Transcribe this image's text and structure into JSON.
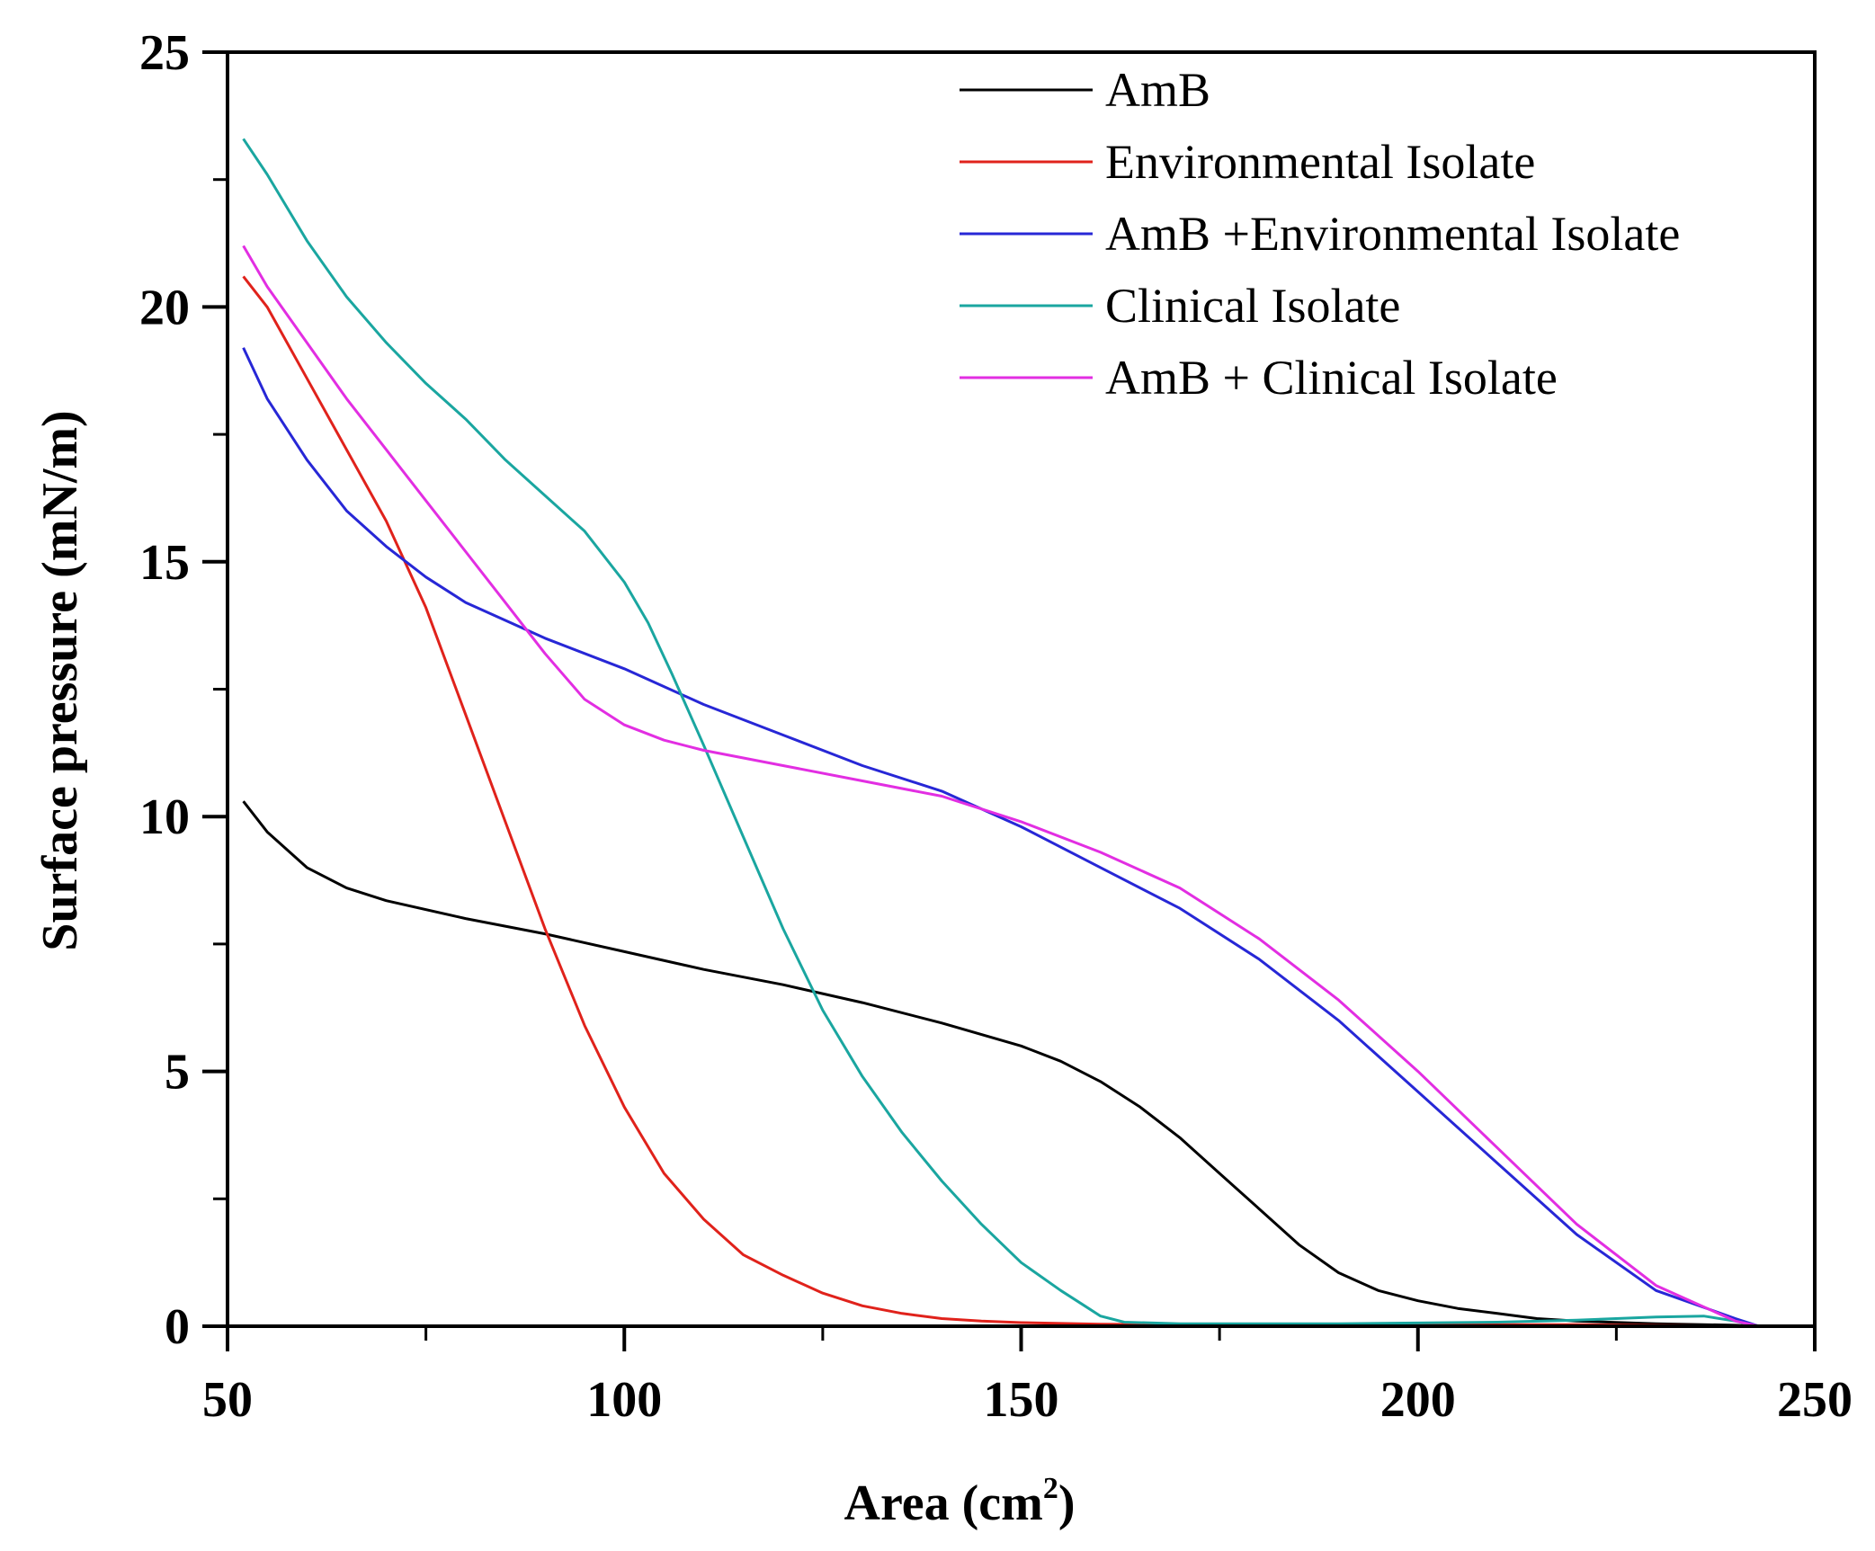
{
  "chart_data": {
    "type": "line",
    "title": "",
    "xlabel_prefix": "Area (cm",
    "xlabel_sup": "2",
    "xlabel_suffix": ")",
    "ylabel": "Surface pressure (mN/m)",
    "xlim": [
      50,
      250
    ],
    "ylim": [
      0,
      25
    ],
    "x_major_ticks": [
      50,
      100,
      150,
      200,
      250
    ],
    "x_minor_ticks": [
      75,
      125,
      175,
      225
    ],
    "y_major_ticks": [
      0,
      5,
      10,
      15,
      20,
      25
    ],
    "y_minor_ticks": [
      2.5,
      7.5,
      12.5,
      17.5,
      22.5
    ],
    "x_tick_labels": [
      "50",
      "100",
      "150",
      "200",
      "250"
    ],
    "y_tick_labels": [
      "0",
      "5",
      "10",
      "15",
      "20",
      "25"
    ],
    "grid": false,
    "legend_position": "top-right",
    "series": [
      {
        "name": "AmB",
        "color": "#000000",
        "points": [
          [
            52,
            10.3
          ],
          [
            55,
            9.7
          ],
          [
            60,
            9.0
          ],
          [
            65,
            8.6
          ],
          [
            70,
            8.35
          ],
          [
            80,
            8.0
          ],
          [
            90,
            7.7
          ],
          [
            100,
            7.35
          ],
          [
            110,
            7.0
          ],
          [
            120,
            6.7
          ],
          [
            130,
            6.35
          ],
          [
            140,
            5.95
          ],
          [
            150,
            5.5
          ],
          [
            155,
            5.2
          ],
          [
            160,
            4.8
          ],
          [
            165,
            4.3
          ],
          [
            170,
            3.7
          ],
          [
            175,
            3.0
          ],
          [
            180,
            2.3
          ],
          [
            185,
            1.6
          ],
          [
            190,
            1.05
          ],
          [
            195,
            0.7
          ],
          [
            200,
            0.5
          ],
          [
            205,
            0.35
          ],
          [
            210,
            0.25
          ],
          [
            215,
            0.15
          ],
          [
            220,
            0.1
          ],
          [
            230,
            0.05
          ],
          [
            240,
            0.02
          ],
          [
            243,
            0.0
          ]
        ]
      },
      {
        "name": "Environmental Isolate",
        "color": "#e0221b",
        "points": [
          [
            52,
            20.6
          ],
          [
            55,
            20.0
          ],
          [
            60,
            18.6
          ],
          [
            65,
            17.2
          ],
          [
            70,
            15.8
          ],
          [
            75,
            14.1
          ],
          [
            80,
            12.0
          ],
          [
            85,
            9.9
          ],
          [
            90,
            7.8
          ],
          [
            95,
            5.9
          ],
          [
            100,
            4.3
          ],
          [
            105,
            3.0
          ],
          [
            110,
            2.1
          ],
          [
            115,
            1.4
          ],
          [
            120,
            1.0
          ],
          [
            125,
            0.65
          ],
          [
            130,
            0.4
          ],
          [
            135,
            0.25
          ],
          [
            140,
            0.15
          ],
          [
            145,
            0.1
          ],
          [
            150,
            0.07
          ],
          [
            160,
            0.04
          ],
          [
            170,
            0.03
          ],
          [
            180,
            0.03
          ],
          [
            200,
            0.03
          ],
          [
            220,
            0.03
          ],
          [
            243,
            0.0
          ]
        ]
      },
      {
        "name": "AmB +Environmental Isolate",
        "color": "#2727d6",
        "points": [
          [
            52,
            19.2
          ],
          [
            55,
            18.2
          ],
          [
            60,
            17.0
          ],
          [
            65,
            16.0
          ],
          [
            70,
            15.3
          ],
          [
            75,
            14.7
          ],
          [
            80,
            14.2
          ],
          [
            90,
            13.5
          ],
          [
            100,
            12.9
          ],
          [
            110,
            12.2
          ],
          [
            120,
            11.6
          ],
          [
            130,
            11.0
          ],
          [
            140,
            10.5
          ],
          [
            150,
            9.8
          ],
          [
            160,
            9.0
          ],
          [
            170,
            8.2
          ],
          [
            180,
            7.2
          ],
          [
            190,
            6.0
          ],
          [
            200,
            4.6
          ],
          [
            210,
            3.2
          ],
          [
            220,
            1.8
          ],
          [
            230,
            0.7
          ],
          [
            240,
            0.15
          ],
          [
            243,
            0.0
          ]
        ]
      },
      {
        "name": "Clinical Isolate",
        "color": "#1aa6a0",
        "points": [
          [
            52,
            23.3
          ],
          [
            55,
            22.6
          ],
          [
            60,
            21.3
          ],
          [
            65,
            20.2
          ],
          [
            70,
            19.3
          ],
          [
            75,
            18.5
          ],
          [
            80,
            17.8
          ],
          [
            85,
            17.0
          ],
          [
            90,
            16.3
          ],
          [
            95,
            15.6
          ],
          [
            100,
            14.6
          ],
          [
            103,
            13.8
          ],
          [
            106,
            12.8
          ],
          [
            110,
            11.4
          ],
          [
            115,
            9.6
          ],
          [
            120,
            7.8
          ],
          [
            125,
            6.2
          ],
          [
            130,
            4.9
          ],
          [
            135,
            3.8
          ],
          [
            140,
            2.85
          ],
          [
            145,
            2.0
          ],
          [
            150,
            1.25
          ],
          [
            155,
            0.7
          ],
          [
            158,
            0.4
          ],
          [
            160,
            0.2
          ],
          [
            163,
            0.08
          ],
          [
            170,
            0.05
          ],
          [
            190,
            0.05
          ],
          [
            210,
            0.08
          ],
          [
            220,
            0.12
          ],
          [
            230,
            0.18
          ],
          [
            236,
            0.2
          ],
          [
            240,
            0.1
          ],
          [
            243,
            0.0
          ]
        ]
      },
      {
        "name": "AmB + Clinical Isolate",
        "color": "#e22ee2",
        "points": [
          [
            52,
            21.2
          ],
          [
            55,
            20.4
          ],
          [
            60,
            19.3
          ],
          [
            65,
            18.2
          ],
          [
            70,
            17.2
          ],
          [
            75,
            16.2
          ],
          [
            80,
            15.2
          ],
          [
            85,
            14.2
          ],
          [
            90,
            13.2
          ],
          [
            95,
            12.3
          ],
          [
            100,
            11.8
          ],
          [
            105,
            11.5
          ],
          [
            110,
            11.3
          ],
          [
            120,
            11.0
          ],
          [
            130,
            10.7
          ],
          [
            140,
            10.4
          ],
          [
            150,
            9.9
          ],
          [
            160,
            9.3
          ],
          [
            170,
            8.6
          ],
          [
            180,
            7.6
          ],
          [
            190,
            6.4
          ],
          [
            200,
            5.0
          ],
          [
            210,
            3.5
          ],
          [
            220,
            2.0
          ],
          [
            230,
            0.8
          ],
          [
            240,
            0.1
          ],
          [
            243,
            0.0
          ]
        ]
      }
    ]
  }
}
